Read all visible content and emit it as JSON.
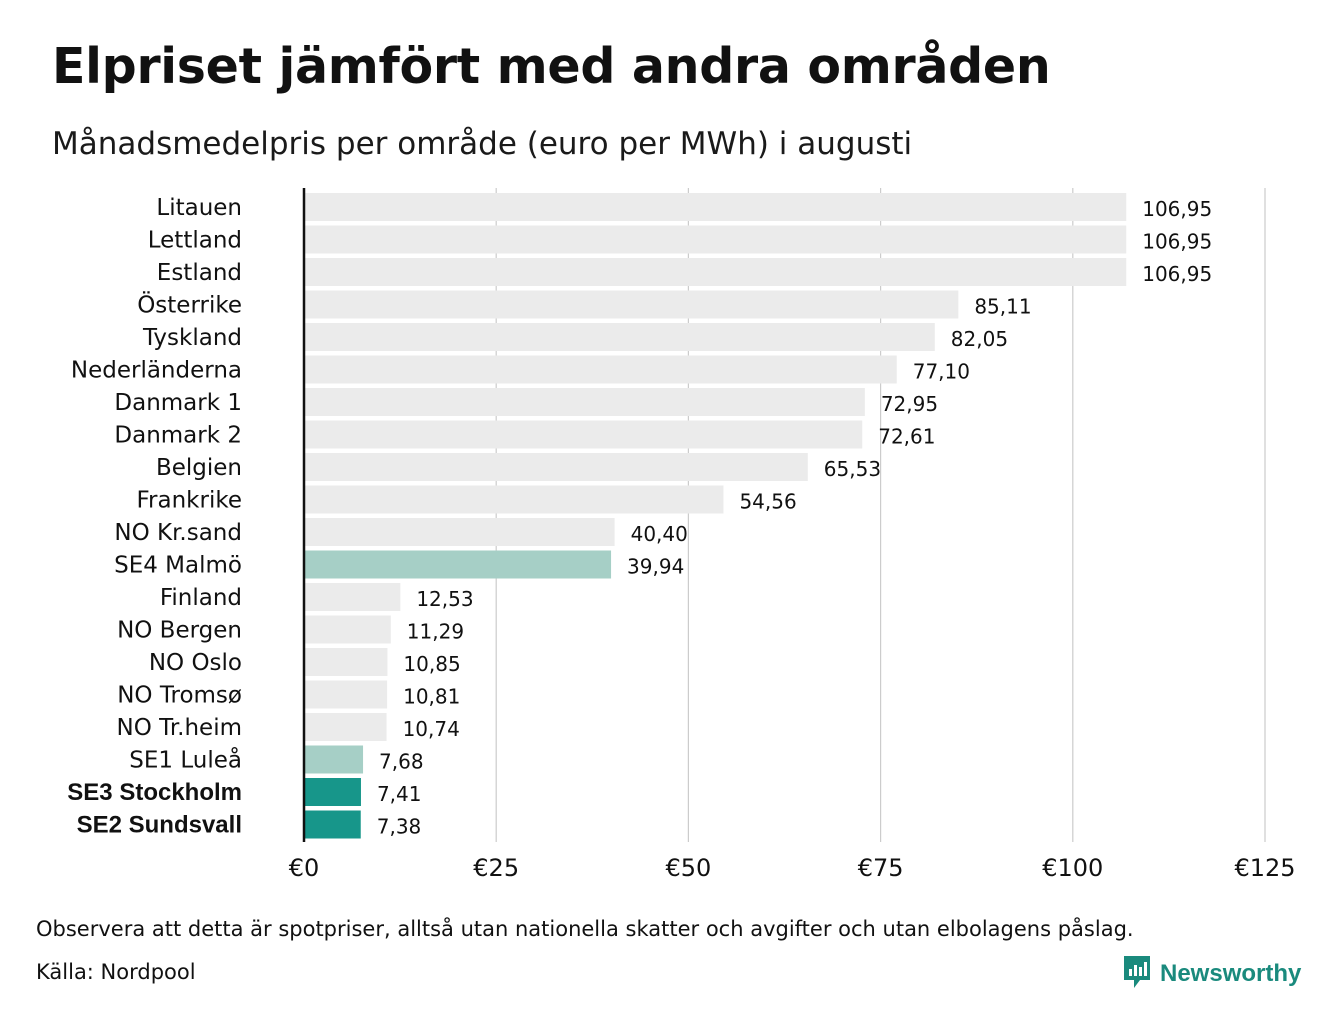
{
  "title": "Elpriset jämfört med andra områden",
  "subtitle": "Månadsmedelpris per område (euro per MWh) i augusti",
  "footer": {
    "note": "Observera att detta är spotpriser, alltså utan nationella skatter och avgifter och utan elbolagens påslag.",
    "source": "Källa: Nordpool",
    "brand": "Newsworthy",
    "brand_icon": "bar-chart-speech-bubble-icon"
  },
  "colors": {
    "default_bar": "#ebebeb",
    "light_teal": "#a6cfc6",
    "dark_teal": "#17968a",
    "grid": "#cccccc",
    "axis": "#111111",
    "brand": "#1a8a7d"
  },
  "chart_data": {
    "type": "bar",
    "orientation": "horizontal",
    "title": "Elpriset jämfört med andra områden",
    "subtitle": "Månadsmedelpris per område (euro per MWh) i augusti",
    "xlim": [
      0,
      125
    ],
    "x_ticks": [
      {
        "value": 0,
        "label": "€0"
      },
      {
        "value": 25,
        "label": "€25"
      },
      {
        "value": 50,
        "label": "€50"
      },
      {
        "value": 75,
        "label": "€75"
      },
      {
        "value": 100,
        "label": "€100"
      },
      {
        "value": 125,
        "label": "€125"
      }
    ],
    "grid": true,
    "categories": [
      "Litauen",
      "Lettland",
      "Estland",
      "Österrike",
      "Tyskland",
      "Nederländerna",
      "Danmark  1",
      "Danmark  2",
      "Belgien",
      "Frankrike",
      "NO Kr.sand",
      "SE4  Malmö",
      "Finland",
      "NO Bergen",
      "NO Oslo",
      "NO Tromsø",
      "NO Tr.heim",
      "SE1  Luleå",
      "SE3 Stockholm",
      "SE2 Sundsvall"
    ],
    "values": [
      106.95,
      106.95,
      106.95,
      85.11,
      82.05,
      77.1,
      72.95,
      72.61,
      65.53,
      54.56,
      40.4,
      39.94,
      12.53,
      11.29,
      10.85,
      10.81,
      10.74,
      7.68,
      7.41,
      7.38
    ],
    "value_labels": [
      "106,95",
      "106,95",
      "106,95",
      "85,11",
      "82,05",
      "77,10",
      "72,95",
      "72,61",
      "65,53",
      "54,56",
      "40,40",
      "39,94",
      "12,53",
      "11,29",
      "10,85",
      "10,81",
      "10,74",
      "7,68",
      "7,41",
      "7,38"
    ],
    "highlight": [
      "default",
      "default",
      "default",
      "default",
      "default",
      "default",
      "default",
      "default",
      "default",
      "default",
      "default",
      "light",
      "default",
      "default",
      "default",
      "default",
      "default",
      "light",
      "dark",
      "dark"
    ],
    "bold_labels": [
      "SE3 Stockholm",
      "SE2 Sundsvall"
    ]
  }
}
